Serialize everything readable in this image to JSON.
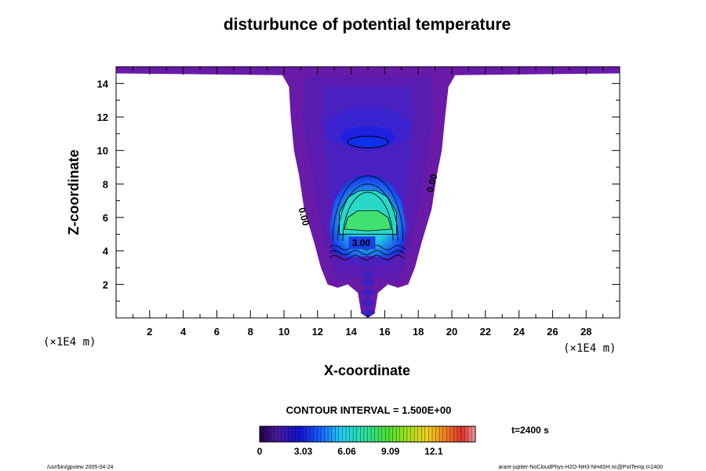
{
  "chart_data": {
    "type": "heatmap",
    "title": "disturbunce of potential temperature",
    "xlabel": "X-coordinate",
    "ylabel": "Z-coordinate",
    "x_unit": "(×1E4 m)",
    "y_unit": "(×1E4 m)",
    "xlim": [
      0,
      30
    ],
    "ylim": [
      0,
      15
    ],
    "x_ticks": [
      2,
      4,
      6,
      8,
      10,
      12,
      14,
      16,
      18,
      20,
      22,
      24,
      26,
      28
    ],
    "y_ticks": [
      2,
      4,
      6,
      8,
      10,
      12,
      14
    ],
    "x_tick_labels": [
      "2",
      "4",
      "6",
      "8",
      "10",
      "12",
      "14",
      "16",
      "18",
      "20",
      "22",
      "24",
      "26",
      "28"
    ],
    "y_tick_labels": [
      "2",
      "4",
      "6",
      "8",
      "10",
      "12",
      "14"
    ],
    "contour_interval_text": "CONTOUR INTERVAL = 1.500E+00",
    "contour_labels": [
      {
        "text": "0.00",
        "x": 11.0,
        "z": 6.0,
        "angle": 75
      },
      {
        "text": "0.00",
        "x": 19.0,
        "z": 8.0,
        "angle": -75
      },
      {
        "text": "3.00",
        "x": 14.6,
        "z": 4.3,
        "angle": 0
      }
    ],
    "colorbar": {
      "min": 0,
      "max": 15,
      "tick_values": [
        0,
        3.03,
        6.06,
        9.09,
        12.1
      ],
      "tick_labels": [
        "0",
        "3.03",
        "6.06",
        "9.09",
        "12.1"
      ]
    },
    "time_label": "t=2400 s",
    "footer_left": "/usr/bin/gpview 2005-04-24",
    "footer_right": "arare-jupiter-NoCloudPhys-H2O-NH3-NH4SH.nc@PotTemp,t=2400"
  }
}
